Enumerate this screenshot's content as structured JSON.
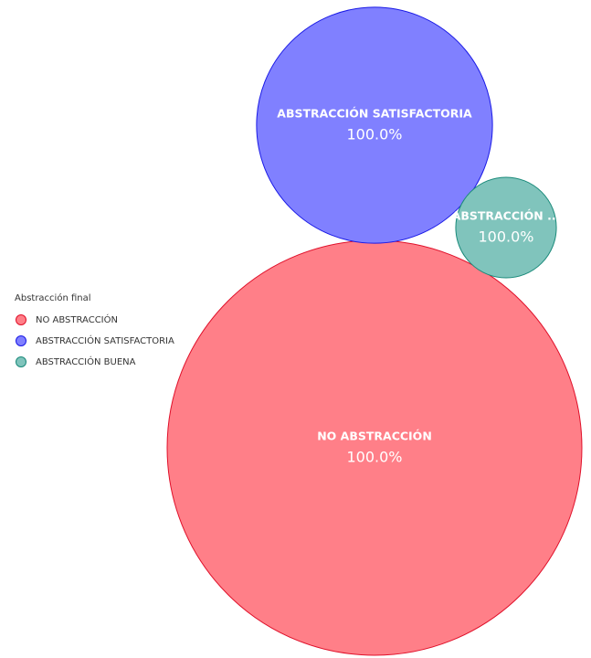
{
  "chart_data": {
    "type": "bubble",
    "legend_title": "Abstracción final",
    "legend_position": "left",
    "categories": [
      "NO ABSTRACCIÓN",
      "ABSTRACCIÓN SATISFACTORIA",
      "ABSTRACCIÓN BUENA"
    ],
    "bubble_labels": [
      "NO ABSTRACCIÓN",
      "ABSTRACCIÓN SATISFACTORIA",
      "ABSTRACCIÓN ..."
    ],
    "values": [
      34,
      11,
      2
    ],
    "percentages": [
      100,
      100,
      100
    ],
    "percentage_labels": [
      "100.0%",
      "100.0%",
      "100.0%"
    ],
    "colors": [
      "#ff7f88",
      "#8080ff",
      "#80c4bc"
    ],
    "stroke_colors": [
      "#e0102a",
      "#1a1ae6",
      "#1a8a7a"
    ]
  }
}
